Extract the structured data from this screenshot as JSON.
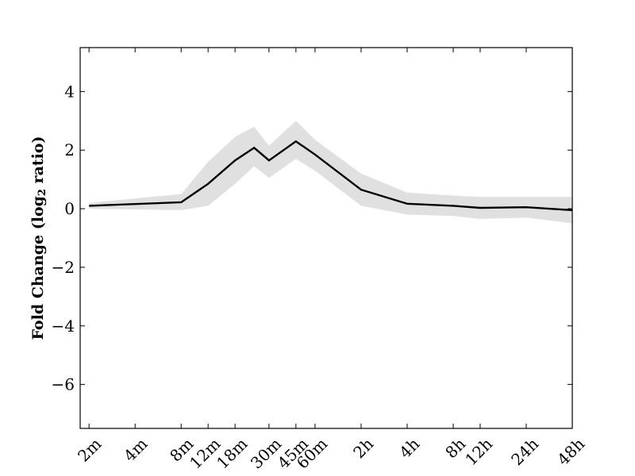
{
  "chart_data": {
    "type": "line",
    "title": "",
    "xlabel": "",
    "ylabel": {
      "prefix": "Fold Change (log",
      "subscript": "2",
      "suffix": " ratio)"
    },
    "ylim": [
      -7.5,
      5.5
    ],
    "yticks": [
      4,
      2,
      0,
      -2,
      -4,
      -6
    ],
    "ytick_labels": [
      "4",
      "2",
      "0",
      "−2",
      "−4",
      "−6"
    ],
    "grid": false,
    "legend": "none",
    "x_scale": "log2 of minutes",
    "xlim_minutes": [
      1.75,
      2880
    ],
    "categories": [
      "2m",
      "4m",
      "8m",
      "12m",
      "18m",
      "30m",
      "45m",
      "60m",
      "2h",
      "4h",
      "8h",
      "12h",
      "24h",
      "48h"
    ],
    "x_minutes": [
      2,
      4,
      8,
      12,
      18,
      30,
      45,
      60,
      120,
      240,
      480,
      720,
      1440,
      2880
    ],
    "series": [
      {
        "color": "#000000",
        "band_color": "#e0e0e0",
        "x_minutes": [
          2,
          8,
          12,
          18,
          24,
          30,
          45,
          60,
          120,
          240,
          480,
          720,
          1440,
          2880
        ],
        "values": [
          0.1,
          0.22,
          0.85,
          1.65,
          2.08,
          1.65,
          2.3,
          1.85,
          0.65,
          0.17,
          0.1,
          0.03,
          0.05,
          -0.05
        ],
        "upper": [
          0.2,
          0.5,
          1.6,
          2.45,
          2.8,
          2.15,
          3.0,
          2.35,
          1.2,
          0.55,
          0.45,
          0.4,
          0.4,
          0.4
        ],
        "lower": [
          0.0,
          -0.05,
          0.1,
          0.85,
          1.45,
          1.05,
          1.7,
          1.3,
          0.1,
          -0.2,
          -0.25,
          -0.35,
          -0.3,
          -0.5
        ]
      }
    ]
  }
}
